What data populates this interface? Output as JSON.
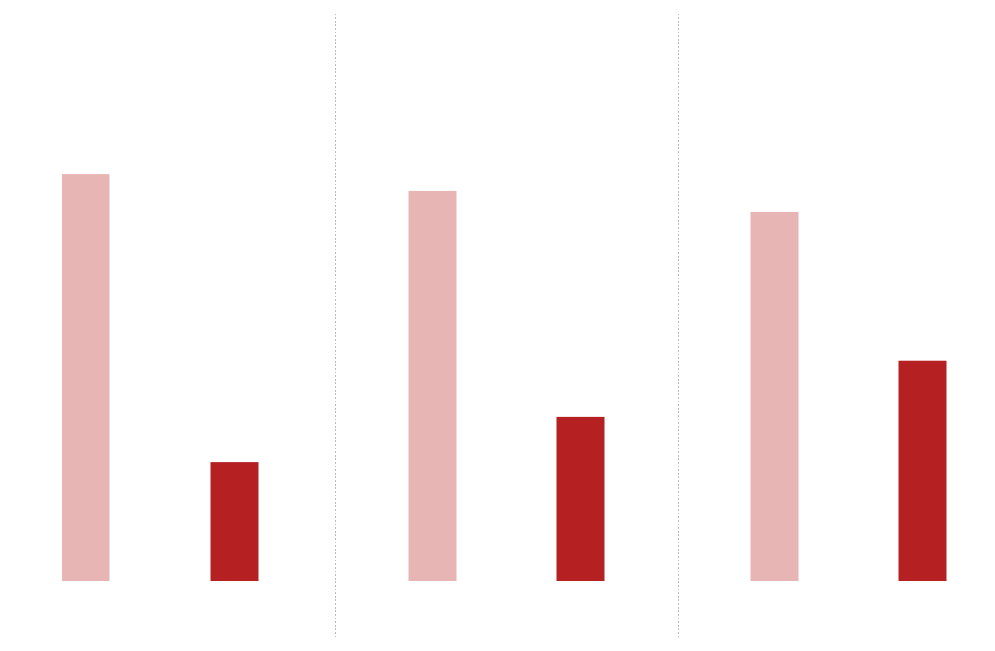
{
  "chart_data": {
    "type": "bar",
    "title": "",
    "xlabel": "",
    "ylabel": "",
    "ylim": [
      0,
      100
    ],
    "grid": false,
    "legend": "none",
    "panels": [
      {
        "values": [
          71.8,
          21.0
        ]
      },
      {
        "values": [
          68.8,
          29.0
        ]
      },
      {
        "values": [
          65.0,
          38.9
        ]
      }
    ],
    "colors": [
      "#e7b6b4",
      "#b52022"
    ],
    "separator_color": "#bbbbbb"
  }
}
